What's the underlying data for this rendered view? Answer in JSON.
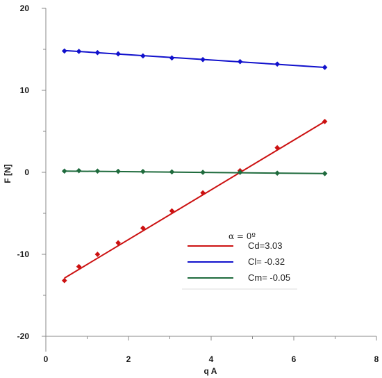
{
  "chart_data": {
    "type": "scatter",
    "xlabel": "q A",
    "ylabel": "F [N]",
    "xlim": [
      0,
      8
    ],
    "ylim": [
      -20,
      20
    ],
    "x_ticks": [
      0,
      2,
      4,
      6,
      8
    ],
    "y_ticks": [
      -20,
      -10,
      0,
      10,
      20
    ],
    "grid": false,
    "legend_placement": "bottom-center",
    "legend_title": "α = 0º",
    "series": [
      {
        "name": "Cd=3.03",
        "color": "#cc1111",
        "x": [
          0.45,
          0.8,
          1.25,
          1.75,
          2.35,
          3.05,
          3.8,
          4.7,
          5.6,
          6.75
        ],
        "y": [
          -13.2,
          -11.5,
          -10.0,
          -8.6,
          -6.8,
          -4.7,
          -2.5,
          0.2,
          3.0,
          6.2
        ],
        "fit": [
          [
            0.45,
            -12.9
          ],
          [
            6.75,
            6.2
          ]
        ]
      },
      {
        "name": "Cl= -0.32",
        "color": "#1111cc",
        "x": [
          0.45,
          0.8,
          1.25,
          1.75,
          2.35,
          3.05,
          3.8,
          4.7,
          5.6,
          6.75
        ],
        "y": [
          14.8,
          14.75,
          14.6,
          14.45,
          14.2,
          13.95,
          13.75,
          13.5,
          13.2,
          12.8
        ],
        "fit": [
          [
            0.45,
            14.85
          ],
          [
            6.75,
            12.8
          ]
        ]
      },
      {
        "name": "Cm= -0.05",
        "color": "#1f6b3d",
        "x": [
          0.45,
          0.8,
          1.25,
          1.75,
          2.35,
          3.05,
          3.8,
          4.7,
          5.6,
          6.75
        ],
        "y": [
          0.15,
          0.2,
          0.15,
          0.12,
          0.1,
          0.05,
          0.0,
          0.0,
          -0.1,
          -0.15
        ],
        "fit": [
          [
            0.45,
            0.15
          ],
          [
            6.75,
            -0.15
          ]
        ]
      }
    ]
  }
}
